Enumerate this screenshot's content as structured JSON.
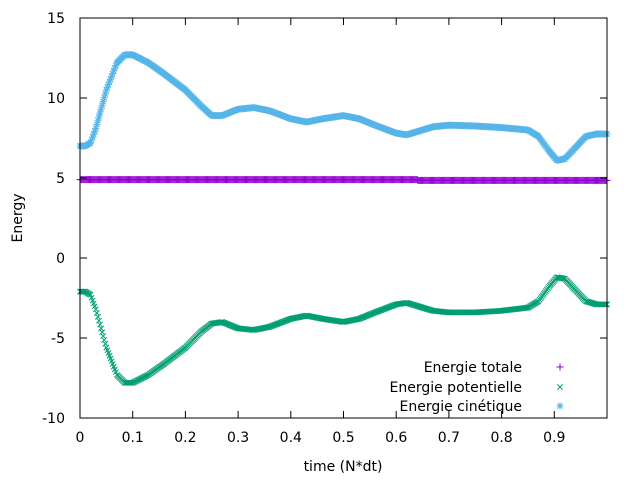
{
  "chart_data": {
    "type": "scatter",
    "xlabel": "time (N*dt)",
    "ylabel": "Energy",
    "xlim": [
      0,
      1.0
    ],
    "ylim": [
      -10,
      15
    ],
    "xticks": [
      "0",
      "0.1",
      "0.2",
      "0.3",
      "0.4",
      "0.5",
      "0.6",
      "0.7",
      "0.8",
      "0.9"
    ],
    "yticks": [
      "-10",
      "-5",
      "0",
      "5",
      "10",
      "15"
    ],
    "grid": false,
    "legend_position": "bottom-right",
    "series": [
      {
        "name": "Energie totale",
        "marker": "+",
        "color": "#9400d3",
        "x": [
          0.0,
          0.64,
          0.641,
          1.0
        ],
        "y": [
          4.9,
          4.9,
          4.85,
          4.85
        ]
      },
      {
        "name": "Energie potentielle",
        "marker": "x",
        "color": "#009e73",
        "x": [
          0.0,
          0.01,
          0.02,
          0.03,
          0.05,
          0.07,
          0.085,
          0.1,
          0.13,
          0.16,
          0.2,
          0.23,
          0.25,
          0.27,
          0.3,
          0.33,
          0.36,
          0.4,
          0.43,
          0.46,
          0.5,
          0.53,
          0.56,
          0.6,
          0.62,
          0.64,
          0.67,
          0.7,
          0.75,
          0.8,
          0.85,
          0.87,
          0.89,
          0.905,
          0.92,
          0.94,
          0.96,
          0.98,
          1.0
        ],
        "y": [
          -2.1,
          -2.1,
          -2.3,
          -3.2,
          -5.6,
          -7.3,
          -7.8,
          -7.8,
          -7.3,
          -6.6,
          -5.6,
          -4.6,
          -4.1,
          -4.0,
          -4.4,
          -4.5,
          -4.3,
          -3.8,
          -3.6,
          -3.8,
          -4.0,
          -3.8,
          -3.4,
          -2.9,
          -2.8,
          -3.0,
          -3.3,
          -3.4,
          -3.4,
          -3.3,
          -3.1,
          -2.7,
          -1.8,
          -1.2,
          -1.3,
          -2.0,
          -2.7,
          -2.9,
          -2.9
        ]
      },
      {
        "name": "Energie cinétique",
        "marker": "*",
        "color": "#56b4e9",
        "x": [
          0.0,
          0.01,
          0.02,
          0.03,
          0.05,
          0.07,
          0.085,
          0.1,
          0.13,
          0.16,
          0.2,
          0.23,
          0.25,
          0.27,
          0.3,
          0.33,
          0.36,
          0.4,
          0.43,
          0.46,
          0.5,
          0.53,
          0.56,
          0.6,
          0.62,
          0.64,
          0.67,
          0.7,
          0.75,
          0.8,
          0.85,
          0.87,
          0.89,
          0.905,
          0.92,
          0.94,
          0.96,
          0.98,
          1.0
        ],
        "y": [
          7.0,
          7.0,
          7.2,
          8.1,
          10.5,
          12.2,
          12.7,
          12.7,
          12.2,
          11.5,
          10.5,
          9.5,
          8.9,
          8.9,
          9.3,
          9.4,
          9.2,
          8.7,
          8.5,
          8.7,
          8.9,
          8.7,
          8.3,
          7.8,
          7.7,
          7.9,
          8.2,
          8.3,
          8.25,
          8.15,
          8.0,
          7.6,
          6.7,
          6.1,
          6.2,
          6.9,
          7.6,
          7.75,
          7.75
        ]
      }
    ]
  }
}
